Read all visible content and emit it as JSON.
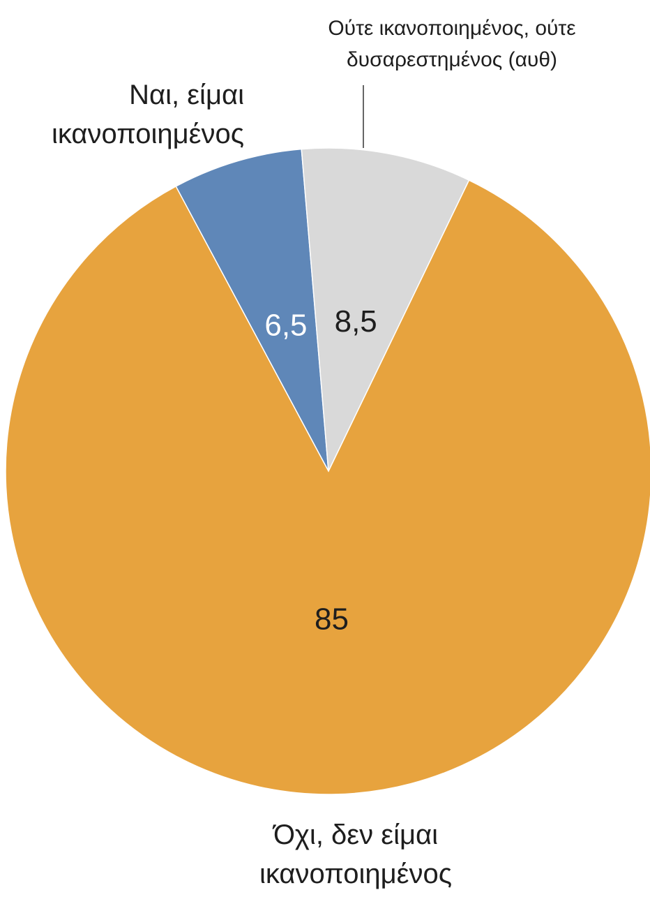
{
  "chart_data": {
    "type": "pie",
    "categories": [
      "Ναι, είμαι ικανοποιημένος",
      "Ούτε ικανοποιημένος, ούτε δυσαρεστημένος (αυθ)",
      "Όχι, δεν είμαι ικανοποιημένος"
    ],
    "values": [
      6.5,
      8.5,
      85
    ],
    "value_labels": [
      "6,5",
      "8,5",
      "85"
    ],
    "colors": [
      "#5f87b8",
      "#d9d9d9",
      "#e7a33e"
    ],
    "label_colors": [
      "#ffffff",
      "#1e1e1e",
      "#1e1e1e"
    ]
  }
}
